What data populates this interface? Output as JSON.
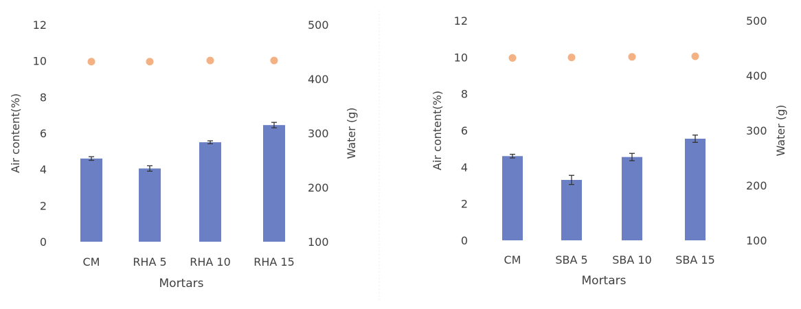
{
  "chart_data": [
    {
      "type": "bar",
      "categories": [
        "CM",
        "RHA 5",
        "RHA 10",
        "RHA 15"
      ],
      "series": [
        {
          "name": "",
          "axis": "left",
          "mark": "bar",
          "values": [
            4.6,
            4.05,
            5.5,
            6.45
          ],
          "error": [
            0.1,
            0.15,
            0.08,
            0.15
          ],
          "color": "#6b7fc4"
        },
        {
          "name": "",
          "axis": "right",
          "mark": "point",
          "values": [
            432,
            432,
            434,
            434
          ],
          "color": "#f4b183"
        }
      ],
      "xlabel": "Mortars",
      "ylabel": "Air content(%)",
      "y2label": "Water (g)",
      "ylim": [
        0,
        12
      ],
      "yticks": [
        "0",
        "2",
        "4",
        "6",
        "8",
        "10",
        "12"
      ],
      "y2lim": [
        100,
        500
      ],
      "y2ticks": [
        "100",
        "200",
        "300",
        "400",
        "500"
      ],
      "grid": false
    },
    {
      "type": "bar",
      "categories": [
        "CM",
        "SBA 5",
        "SBA 10",
        "SBA 15"
      ],
      "series": [
        {
          "name": "",
          "axis": "left",
          "mark": "bar",
          "values": [
            4.6,
            3.3,
            4.55,
            5.55
          ],
          "error": [
            0.1,
            0.25,
            0.2,
            0.2
          ],
          "color": "#6b7fc4"
        },
        {
          "name": "",
          "axis": "right",
          "mark": "point",
          "values": [
            432,
            433,
            434,
            435
          ],
          "color": "#f4b183"
        }
      ],
      "xlabel": "Mortars",
      "ylabel": "Air content(%)",
      "y2label": "Water (g)",
      "ylim": [
        0,
        12
      ],
      "yticks": [
        "0",
        "2",
        "4",
        "6",
        "8",
        "10",
        "12"
      ],
      "y2lim": [
        100,
        500
      ],
      "y2ticks": [
        "100",
        "200",
        "300",
        "400",
        "500"
      ],
      "grid": false
    }
  ]
}
